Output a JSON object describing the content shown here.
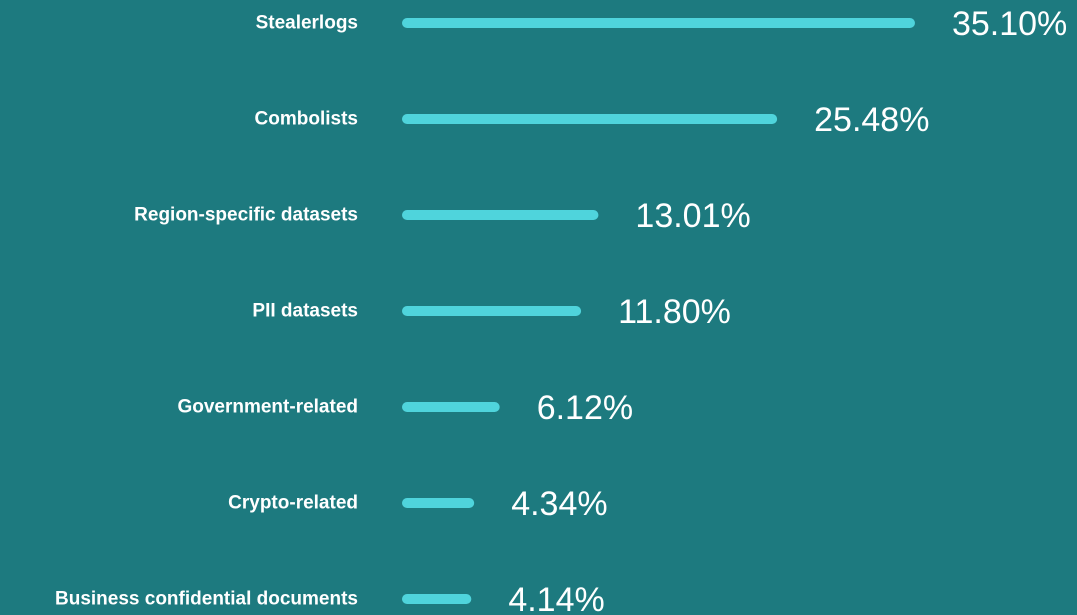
{
  "chart_data": {
    "type": "bar",
    "categories": [
      "Stealerlogs",
      "Combolists",
      "Region-specific datasets",
      "PII datasets",
      "Government-related",
      "Crypto-related",
      "Business confidential documents"
    ],
    "values": [
      35.1,
      25.48,
      13.01,
      11.8,
      6.12,
      4.34,
      4.14
    ],
    "value_labels": [
      "35.10%",
      "25.48%",
      "13.01%",
      "11.80%",
      "6.12%",
      "4.34%",
      "4.14%"
    ],
    "color": "#4fd4dc"
  }
}
